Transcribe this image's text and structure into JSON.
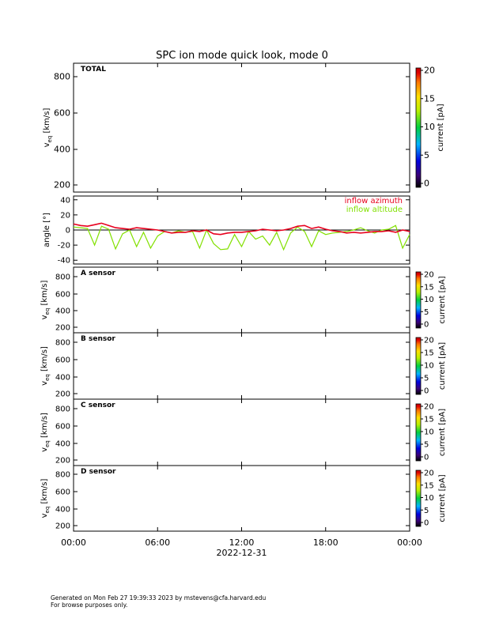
{
  "page": {
    "title": "SPC ion mode quick look, mode 0",
    "footer_line1": "Generated on Mon Feb 27 19:39:33 2023 by mstevens@cfa.harvard.edu",
    "footer_line2": "For browse purposes only."
  },
  "colors": {
    "azimuth": "#e8001e",
    "altitude": "#82e000",
    "axis": "#000000"
  },
  "colorbar": {
    "label": "current [pA]",
    "ticks": [
      "0",
      "5",
      "10",
      "15",
      "20"
    ],
    "range": [
      0,
      20
    ]
  },
  "panels": [
    {
      "label": "TOTAL",
      "yticks": [
        "200",
        "400",
        "600",
        "800"
      ]
    },
    {
      "label": "A sensor",
      "yticks": [
        "200",
        "400",
        "600",
        "800"
      ]
    },
    {
      "label": "B sensor",
      "yticks": [
        "200",
        "400",
        "600",
        "800"
      ]
    },
    {
      "label": "C sensor",
      "yticks": [
        "200",
        "400",
        "600",
        "800"
      ]
    },
    {
      "label": "D sensor",
      "yticks": [
        "200",
        "400",
        "600",
        "800"
      ]
    }
  ],
  "xaxis": {
    "ticks": [
      "00:00",
      "06:00",
      "12:00",
      "18:00",
      "00:00"
    ],
    "date": "2022-12-31"
  },
  "chart_data": [
    {
      "type": "heatmap",
      "title": "TOTAL",
      "ylabel": "v_eq [km/s]",
      "ylim": [
        150,
        880
      ],
      "xlim_hours": [
        0,
        24
      ],
      "values": [],
      "colorbar_range_pA": [
        0,
        20
      ]
    },
    {
      "type": "line",
      "ylabel": "angle [°]",
      "ylim": [
        -45,
        45
      ],
      "yticks": [
        -40,
        -20,
        0,
        20,
        40
      ],
      "xlim_hours": [
        0,
        24
      ],
      "series": [
        {
          "name": "inflow azimuth",
          "x": [
            0,
            0.5,
            1,
            1.5,
            2,
            2.5,
            3,
            3.5,
            4,
            4.5,
            5,
            5.5,
            6,
            6.5,
            7,
            7.5,
            8,
            8.5,
            9,
            9.5,
            10,
            10.5,
            11,
            11.5,
            12,
            12.5,
            13,
            13.5,
            14,
            14.5,
            15,
            15.5,
            16,
            16.5,
            17,
            17.5,
            18,
            18.5,
            19,
            19.5,
            20,
            20.5,
            21,
            21.5,
            22,
            22.5,
            23,
            23.5,
            24
          ],
          "values": [
            8,
            6,
            5,
            7,
            9,
            6,
            3,
            2,
            1,
            3,
            2,
            1,
            0,
            -2,
            -4,
            -3,
            -3,
            -1,
            -2,
            0,
            -5,
            -6,
            -4,
            -3,
            -3,
            -2,
            -1,
            1,
            0,
            -1,
            0,
            2,
            5,
            6,
            2,
            4,
            1,
            -1,
            -2,
            -4,
            -3,
            -4,
            -3,
            -2,
            -2,
            -1,
            -3,
            0,
            -2
          ]
        },
        {
          "name": "inflow altitude",
          "x": [
            0,
            0.5,
            1,
            1.5,
            2,
            2.5,
            3,
            3.5,
            4,
            4.5,
            5,
            5.5,
            6,
            6.5,
            7,
            7.5,
            8,
            8.5,
            9,
            9.5,
            10,
            10.5,
            11,
            11.5,
            12,
            12.5,
            13,
            13.5,
            14,
            14.5,
            15,
            15.5,
            16,
            16.5,
            17,
            17.5,
            18,
            18.5,
            19,
            19.5,
            20,
            20.5,
            21,
            21.5,
            22,
            22.5,
            23,
            23.5,
            24
          ],
          "values": [
            4,
            3,
            2,
            -20,
            5,
            1,
            -25,
            -5,
            0,
            -22,
            -3,
            -24,
            -8,
            -2,
            -4,
            -1,
            -3,
            -2,
            -24,
            0,
            -18,
            -26,
            -25,
            -6,
            -22,
            -2,
            -12,
            -8,
            -20,
            -3,
            -26,
            -4,
            4,
            -2,
            -22,
            -1,
            -6,
            -4,
            -3,
            -2,
            0,
            3,
            -1,
            -4,
            0,
            1,
            6,
            -24,
            -6
          ]
        }
      ]
    },
    {
      "type": "heatmap",
      "title": "A sensor",
      "ylabel": "v_eq [km/s]",
      "ylim": [
        150,
        880
      ],
      "values": [],
      "colorbar_range_pA": [
        0,
        20
      ]
    },
    {
      "type": "heatmap",
      "title": "B sensor",
      "ylabel": "v_eq [km/s]",
      "ylim": [
        150,
        880
      ],
      "values": [],
      "colorbar_range_pA": [
        0,
        20
      ]
    },
    {
      "type": "heatmap",
      "title": "C sensor",
      "ylabel": "v_eq [km/s]",
      "ylim": [
        150,
        880
      ],
      "values": [],
      "colorbar_range_pA": [
        0,
        20
      ]
    },
    {
      "type": "heatmap",
      "title": "D sensor",
      "ylabel": "v_eq [km/s]",
      "ylim": [
        150,
        880
      ],
      "values": [],
      "colorbar_range_pA": [
        0,
        20
      ]
    }
  ]
}
